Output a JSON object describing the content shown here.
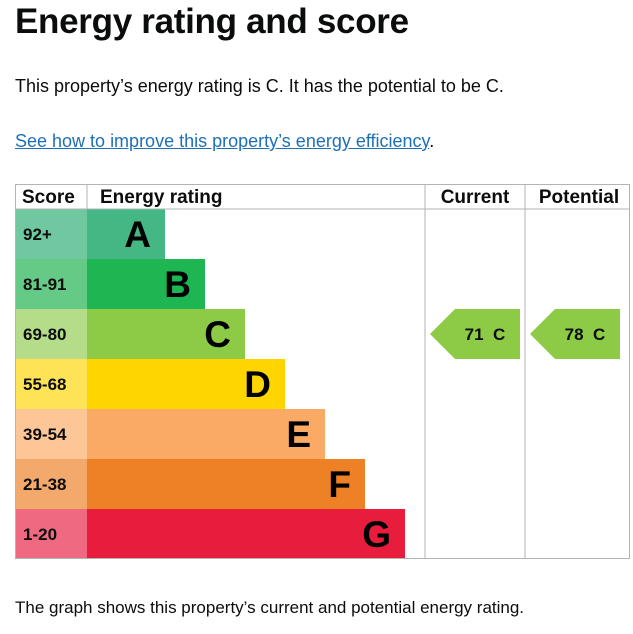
{
  "page": {
    "title": "Energy rating and score",
    "intro": "This property’s energy rating is C. It has the potential to be C.",
    "link_text": "See how to improve this property’s energy efficiency",
    "link_suffix": ".",
    "footer": "The graph shows this property’s current and potential energy rating."
  },
  "chart_data": {
    "type": "table",
    "headers": {
      "score": "Score",
      "rating": "Energy rating",
      "current": "Current",
      "potential": "Potential"
    },
    "bands": [
      {
        "letter": "A",
        "range": "92+",
        "color": "#44b784",
        "score_bg": "#6fc8a0"
      },
      {
        "letter": "B",
        "range": "81-91",
        "color": "#1db652",
        "score_bg": "#65ca86"
      },
      {
        "letter": "C",
        "range": "69-80",
        "color": "#8dcb46",
        "score_bg": "#b5dc88"
      },
      {
        "letter": "D",
        "range": "55-68",
        "color": "#ffd500",
        "score_bg": "#ffe357"
      },
      {
        "letter": "E",
        "range": "39-54",
        "color": "#fbaa65",
        "score_bg": "#fcc696"
      },
      {
        "letter": "F",
        "range": "21-38",
        "color": "#ee8126",
        "score_bg": "#f3a86c"
      },
      {
        "letter": "G",
        "range": "1-20",
        "color": "#e81c3c",
        "score_bg": "#ef6a80"
      }
    ],
    "current": {
      "value": 71,
      "letter": "C",
      "label": "71  C",
      "color": "#8dcb46"
    },
    "potential": {
      "value": 78,
      "letter": "C",
      "label": "78  C",
      "color": "#8dcb46"
    }
  }
}
